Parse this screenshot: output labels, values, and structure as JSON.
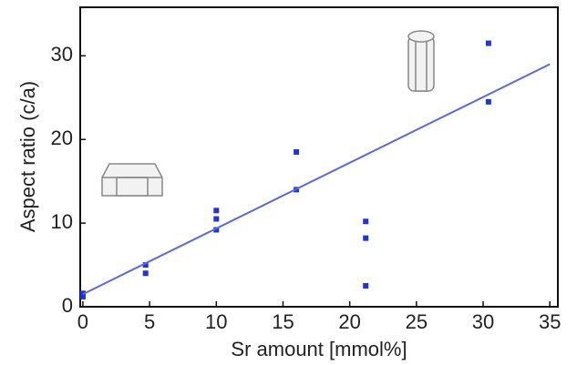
{
  "chart_data": {
    "type": "scatter",
    "xlabel": "Sr amount [mmol%]",
    "ylabel": "Aspect ratio (c/a)",
    "series": [
      {
        "color": "#1f35d8",
        "x": [
          0,
          0,
          4.7,
          4.7,
          10,
          10,
          10,
          16,
          16,
          21.2,
          21.2,
          21.2,
          30.4,
          30.4
        ],
        "values": [
          1.2,
          1.6,
          5,
          4,
          11.5,
          10.5,
          9.2,
          18.5,
          14,
          10.2,
          8.2,
          2.5,
          31.5,
          24.5
        ]
      },
      {
        "type": "line",
        "color": "#5a6ae0",
        "x": [
          0,
          35
        ],
        "values": [
          1.5,
          29
        ]
      }
    ],
    "xlim": [
      -0.2,
      35.6
    ],
    "ylim": [
      0,
      35.8
    ],
    "xticks": [
      0,
      5,
      10,
      15,
      20,
      25,
      30,
      35
    ],
    "yticks": [
      0,
      10,
      20,
      30
    ]
  }
}
